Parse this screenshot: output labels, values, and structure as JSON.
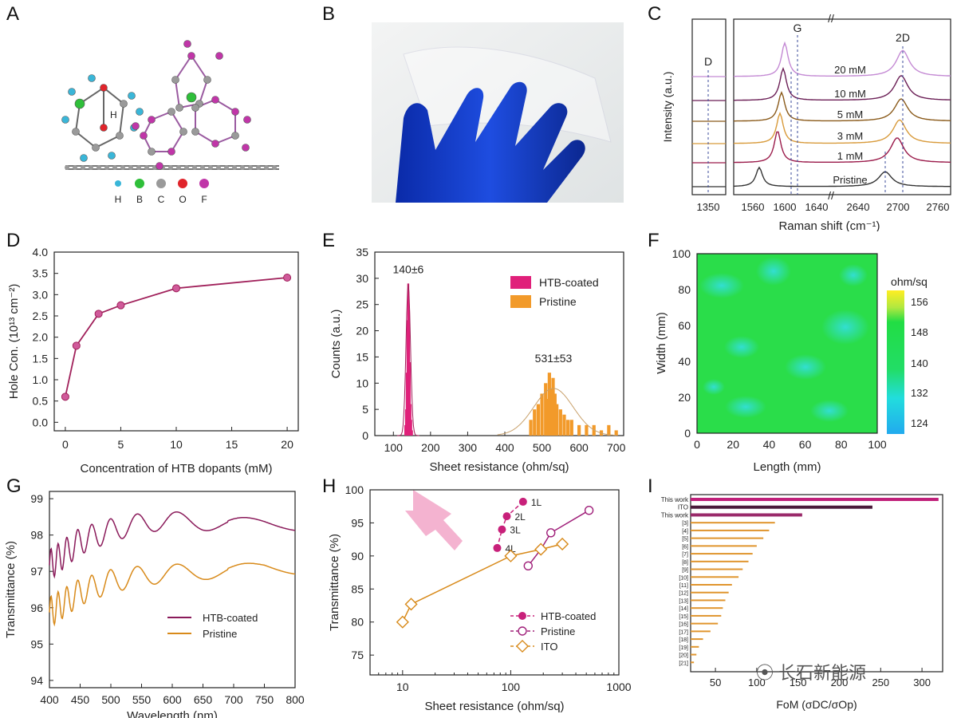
{
  "panels": [
    "A",
    "B",
    "C",
    "D",
    "E",
    "F",
    "G",
    "H",
    "I"
  ],
  "A": {
    "legend": [
      "H",
      "B",
      "C",
      "O",
      "F"
    ],
    "colors": [
      "#3ab6d8",
      "#2fbf3a",
      "#9a9a9a",
      "#e0242b",
      "#c036a8"
    ],
    "hlabel": "H"
  },
  "C": {
    "ylabel": "Intensity (a.u.)",
    "xlabel": "Raman shift (cm⁻¹)",
    "peaks": [
      "D",
      "G",
      "2D"
    ],
    "break": "//",
    "xticks_left": [
      "1350"
    ],
    "xticks_mid": [
      "1560",
      "1600",
      "1640"
    ],
    "xticks_right": [
      "2640",
      "2700",
      "2760"
    ],
    "spectra": [
      {
        "label": "20 mM",
        "color": "#c48ad4"
      },
      {
        "label": "10 mM",
        "color": "#6b1f56"
      },
      {
        "label": "5 mM",
        "color": "#8a5a1a"
      },
      {
        "label": "3 mM",
        "color": "#d89a3a"
      },
      {
        "label": "1 mM",
        "color": "#9a1a4a"
      },
      {
        "label": "Pristine",
        "color": "#333333"
      }
    ]
  },
  "F": {
    "xlabel": "Length (mm)",
    "ylabel": "Width (mm)",
    "unit": "ohm/sq",
    "xticks": [
      "0",
      "20",
      "40",
      "60",
      "80",
      "100"
    ],
    "yticks": [
      "0",
      "20",
      "40",
      "60",
      "80",
      "100"
    ],
    "cticks": [
      "156",
      "148",
      "140",
      "132",
      "124"
    ]
  },
  "I": {
    "xlabel": "FoM (σDC/σOp)",
    "xticks": [
      "50",
      "100",
      "150",
      "200",
      "250",
      "300"
    ],
    "labels": [
      "This work",
      "ITO",
      "This work",
      "[3]",
      "[4]",
      "[5]",
      "[6]",
      "[7]",
      "[8]",
      "[9]",
      "[10]",
      "[11]",
      "[12]",
      "[13]",
      "[14]",
      "[15]",
      "[16]",
      "[17]",
      "[18]",
      "[19]",
      "[20]",
      "[21]"
    ],
    "values": [
      320,
      240,
      155,
      122,
      115,
      108,
      100,
      95,
      90,
      83,
      78,
      70,
      66,
      62,
      59,
      57,
      53,
      44,
      35,
      30,
      27,
      24
    ],
    "colors": [
      "#c0207a",
      "#4a1a3a",
      "#9a2a6a"
    ],
    "other_color": "#e0952e",
    "watermark": "长石新能源"
  },
  "chart_data": [
    {
      "type": "line",
      "panel": "D",
      "xlabel": "Concentration of HTB dopants (mM)",
      "ylabel": "Hole Con. (10¹³ cm⁻²)",
      "xlim": [
        -1,
        21
      ],
      "ylim": [
        -0.2,
        4.0
      ],
      "xticks": [
        0,
        5,
        10,
        15,
        20
      ],
      "yticks": [
        0.0,
        0.5,
        1.0,
        1.5,
        2.0,
        2.5,
        3.0,
        3.5,
        4.0
      ],
      "x": [
        0,
        1,
        3,
        5,
        10,
        20
      ],
      "y": [
        0.6,
        1.8,
        2.55,
        2.75,
        3.15,
        3.4
      ],
      "color": "#a0205a"
    },
    {
      "type": "bar",
      "panel": "E",
      "xlabel": "Sheet resistance (ohm/sq)",
      "ylabel": "Counts (a.u.)",
      "xlim": [
        50,
        720
      ],
      "ylim": [
        0,
        35
      ],
      "xticks": [
        100,
        200,
        300,
        400,
        500,
        600,
        700
      ],
      "yticks": [
        0,
        5,
        10,
        15,
        20,
        25,
        30,
        35
      ],
      "series": [
        {
          "name": "HTB-coated",
          "color": "#e0207a",
          "annotation": "140±6",
          "x": [
            132,
            134,
            136,
            138,
            140,
            142,
            144,
            146,
            148,
            150
          ],
          "values": [
            2,
            5,
            12,
            22,
            29,
            24,
            14,
            6,
            3,
            1
          ]
        },
        {
          "name": "Pristine",
          "color": "#f29a2a",
          "annotation": "531±53",
          "x": [
            470,
            480,
            490,
            500,
            510,
            515,
            520,
            525,
            530,
            535,
            540,
            550,
            560,
            570,
            580,
            600,
            620,
            640,
            660,
            680,
            700
          ],
          "values": [
            3,
            5,
            6,
            8,
            10,
            7,
            12,
            9,
            11,
            8,
            6,
            5,
            4,
            3,
            3,
            2,
            2,
            2,
            1,
            2,
            1
          ]
        }
      ]
    },
    {
      "type": "line",
      "panel": "G",
      "xlabel": "Wavelength (nm)",
      "ylabel": "Transmittance (%)",
      "xlim": [
        400,
        800
      ],
      "ylim": [
        93.8,
        99.2
      ],
      "xticks": [
        400,
        450,
        500,
        550,
        600,
        650,
        700,
        750,
        800
      ],
      "yticks": [
        94,
        95,
        96,
        97,
        98,
        99
      ],
      "series": [
        {
          "name": "HTB-coated",
          "color": "#8a1a5a",
          "base": [
            [
              400,
              97.6
            ],
            [
              450,
              98.2
            ],
            [
              500,
              98.45
            ],
            [
              550,
              98.6
            ],
            [
              600,
              98.65
            ],
            [
              650,
              98.55
            ],
            [
              700,
              98.5
            ],
            [
              750,
              98.45
            ],
            [
              800,
              98.35
            ]
          ]
        },
        {
          "name": "Pristine",
          "color": "#d88a1a",
          "base": [
            [
              400,
              96.3
            ],
            [
              450,
              96.8
            ],
            [
              500,
              97.05
            ],
            [
              550,
              97.15
            ],
            [
              600,
              97.2
            ],
            [
              650,
              97.2
            ],
            [
              700,
              97.2
            ],
            [
              750,
              97.25
            ],
            [
              800,
              97.15
            ]
          ]
        }
      ]
    },
    {
      "type": "scatter",
      "panel": "H",
      "xlabel": "Sheet resistance (ohm/sq)",
      "ylabel": "Transmittance (%)",
      "xscale": "log",
      "xlim": [
        5,
        1000
      ],
      "ylim": [
        72,
        100
      ],
      "xticks": [
        10,
        100,
        1000
      ],
      "yticks": [
        75,
        80,
        85,
        90,
        95,
        100
      ],
      "series": [
        {
          "name": "HTB-coated",
          "color": "#c8207a",
          "x": [
            130,
            92,
            83,
            75
          ],
          "y": [
            98.2,
            96.0,
            94.0,
            91.2
          ],
          "labels": [
            "1L",
            "2L",
            "3L",
            "4L"
          ]
        },
        {
          "name": "Pristine",
          "color": "#a0207a",
          "x": [
            530,
            235,
            190,
            145
          ],
          "y": [
            96.9,
            93.5,
            91.0,
            88.5
          ]
        },
        {
          "name": "ITO",
          "color": "#d88a1a",
          "x": [
            10,
            12,
            100,
            190,
            300
          ],
          "y": [
            80.0,
            82.7,
            90.0,
            91.0,
            91.8
          ]
        }
      ]
    }
  ]
}
